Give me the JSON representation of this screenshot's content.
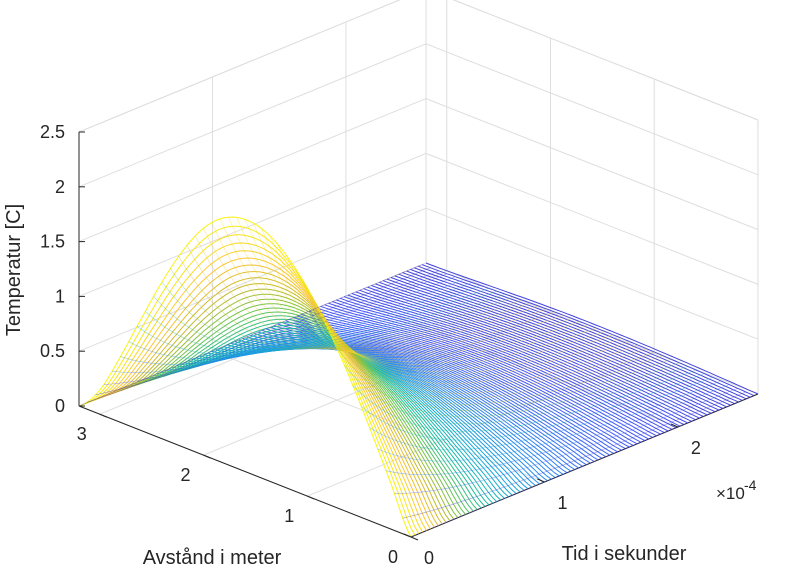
{
  "chart_data": {
    "type": "line",
    "subtype": "3d-waterfall-mesh",
    "title": "",
    "xlabel": "Avstånd i meter",
    "ylabel": "Tid i sekunder",
    "zlabel": "Temperatur [C]",
    "y_exponent_label": "×10",
    "y_exponent_power": "-4",
    "xlim": [
      0,
      3.2
    ],
    "ylim": [
      0,
      0.00026
    ],
    "zlim": [
      0,
      2.5
    ],
    "x_ticks": [
      "0",
      "1",
      "2",
      "3"
    ],
    "y_ticks": [
      "0",
      "1",
      "2"
    ],
    "z_ticks": [
      "0",
      "0.5",
      "1",
      "1.5",
      "2",
      "2.5"
    ],
    "grid": true,
    "colormap": "parula",
    "colormap_colors": [
      "#3e26a8",
      "#4656f8",
      "#2c87f4",
      "#17a9da",
      "#1bbfa0",
      "#6ac54f",
      "#c6ba2a",
      "#fcc337",
      "#f9e31b",
      "#f9fb0e"
    ],
    "profile": {
      "x_meter": [
        0,
        0.2,
        0.4,
        0.6,
        0.8,
        1.0,
        1.2,
        1.4,
        1.6,
        1.8,
        2.0,
        2.2,
        2.4,
        2.6,
        2.8,
        3.0,
        3.2
      ],
      "temperature_at_t0": [
        0.0,
        0.43,
        0.85,
        1.25,
        1.6,
        1.9,
        2.12,
        2.26,
        2.3,
        2.24,
        2.07,
        1.79,
        1.43,
        1.02,
        0.6,
        0.22,
        0.0
      ]
    },
    "time_samples": {
      "start": 0,
      "end": 0.00026,
      "count": 90,
      "amplitude_at_end": 0.02
    }
  }
}
